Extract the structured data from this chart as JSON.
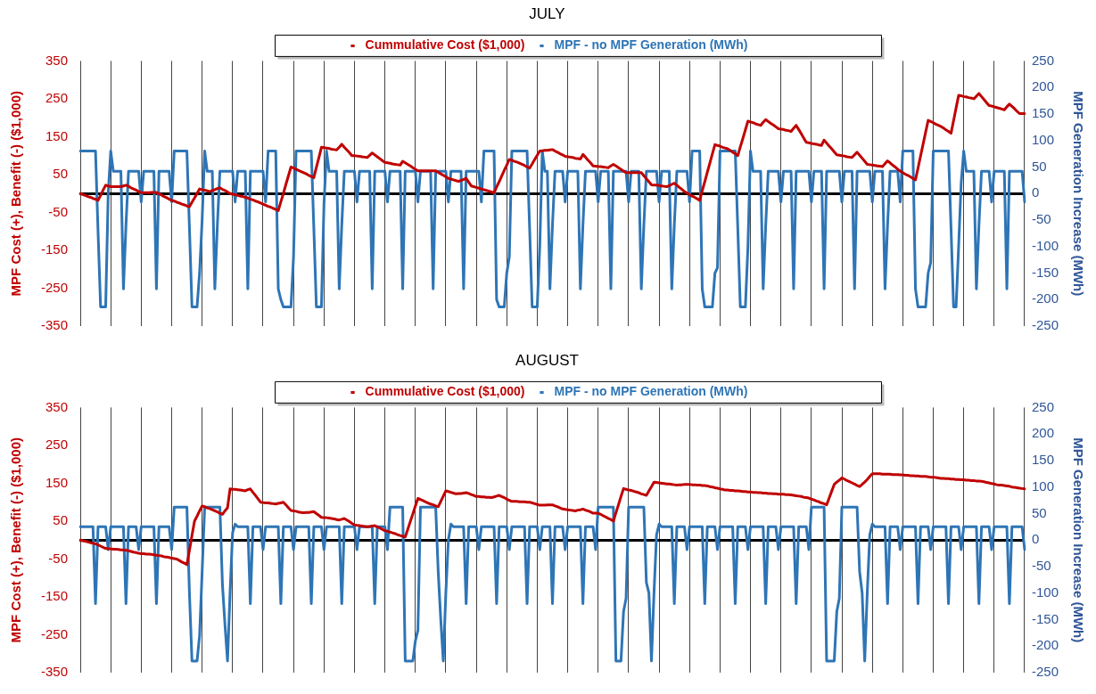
{
  "chart_data": [
    {
      "type": "line",
      "title": "JULY",
      "ylabel": "MPF Cost (+), Benefit (-) ($1,000)",
      "y2label": "MPF Generation Increase (MWh)",
      "categories": [
        null,
        null,
        null,
        null,
        null,
        null,
        null,
        null,
        null,
        null,
        null,
        null,
        null,
        null,
        null,
        null,
        null,
        null,
        null,
        null,
        null,
        null,
        null,
        null,
        null,
        null,
        null,
        null,
        null,
        null,
        null,
        null,
        null,
        null,
        null,
        null,
        null,
        null,
        null,
        null,
        null,
        null,
        null,
        null,
        null,
        null,
        null,
        null,
        null,
        null,
        null,
        null,
        null,
        null,
        null,
        null,
        null,
        null,
        null,
        null,
        null,
        null,
        null,
        null,
        null,
        null,
        null,
        null,
        null,
        null,
        null,
        null,
        null,
        null,
        null,
        null,
        null,
        null,
        null,
        null,
        null,
        null,
        null,
        null,
        null,
        null,
        null,
        null,
        null,
        null,
        null,
        null,
        null,
        null,
        null,
        null,
        null,
        null,
        null,
        null,
        null,
        null,
        null,
        null,
        null,
        null,
        null,
        null,
        null,
        null,
        null,
        null,
        null,
        null,
        null,
        null,
        null,
        null,
        null,
        null,
        null,
        null,
        null,
        null,
        null,
        null,
        null,
        null,
        null,
        null,
        null,
        null,
        null,
        null,
        null,
        null,
        null,
        null,
        null,
        null,
        null,
        null,
        null,
        null,
        null,
        null,
        null,
        null,
        null,
        null,
        null,
        null,
        null,
        null,
        null,
        null,
        null,
        null,
        null,
        null,
        null,
        null,
        null,
        null,
        null,
        null,
        null,
        null,
        null,
        null,
        null,
        null,
        null,
        null,
        null,
        null,
        null,
        null,
        null,
        null,
        null,
        null,
        null,
        null,
        null,
        null,
        null,
        null,
        null,
        null,
        null,
        null,
        null,
        null,
        null,
        null,
        null,
        null,
        null,
        null,
        null,
        null,
        null,
        null,
        null,
        null,
        null,
        null,
        null,
        null,
        null,
        null,
        null,
        null,
        null,
        null,
        null,
        null,
        null,
        null,
        null,
        null,
        null,
        null,
        null,
        null,
        null,
        null,
        null,
        null,
        null,
        null,
        null,
        null,
        null,
        null,
        null,
        null,
        null,
        null,
        null,
        null,
        null,
        null,
        null,
        null,
        null,
        null,
        null,
        null,
        null,
        null,
        null,
        null,
        null,
        null,
        null,
        null,
        null,
        null,
        null,
        null,
        null,
        null,
        null,
        null,
        null,
        null,
        null,
        null,
        null,
        null,
        null,
        null,
        null,
        null,
        null,
        null,
        null,
        null,
        null,
        null,
        null,
        null,
        null,
        null,
        null,
        null,
        null,
        null,
        null,
        null,
        null,
        null,
        null,
        null,
        null,
        null,
        null,
        null,
        null,
        null,
        null,
        null,
        null,
        null,
        null,
        null,
        null,
        null,
        null,
        null,
        null,
        null,
        null,
        null,
        null,
        null,
        null,
        null,
        null,
        null,
        null,
        null,
        null,
        null,
        null,
        null,
        null,
        null,
        null,
        null,
        null,
        null,
        null,
        null,
        null,
        null,
        null,
        null,
        null,
        null,
        null,
        null,
        null,
        null,
        null,
        null,
        null,
        null,
        null,
        null,
        null,
        null,
        null,
        null,
        null,
        null,
        null,
        null,
        null,
        null,
        null,
        null,
        null,
        null,
        null,
        null,
        null,
        null,
        null,
        null,
        null
      ],
      "ylim": [
        -350,
        350
      ],
      "yticks": [
        -350,
        -250,
        -150,
        -50,
        50,
        150,
        250,
        350
      ],
      "y2lim": [
        -250,
        250
      ],
      "y2ticks": [
        -250,
        -200,
        -150,
        -100,
        -50,
        0,
        50,
        100,
        150,
        200,
        250
      ],
      "grid": "x",
      "legend": "top",
      "tick_labels": "y",
      "marker": "none",
      "series": [
        {
          "name": "Cummulative Cost ($1,000)",
          "color": "#c00000",
          "values": [
            0,
            -3,
            -5,
            -8,
            -10,
            -13,
            -15,
            -18,
            -5,
            9,
            22,
            20,
            18,
            18,
            18,
            18,
            18,
            20,
            22,
            19,
            15,
            12,
            9,
            5,
            2,
            2,
            2,
            2,
            3,
            3,
            3,
            -1,
            -4,
            -8,
            -11,
            -15,
            -18,
            -20,
            -23,
            -25,
            -28,
            -30,
            -33,
            -35,
            -23,
            -12,
            0,
            12,
            10,
            9,
            7,
            5,
            8,
            10,
            13,
            15,
            11,
            8,
            4,
            0,
            -2,
            -3,
            -5,
            -7,
            -8,
            -10,
            -12,
            -15,
            -17,
            -20,
            -22,
            -25,
            -28,
            -31,
            -34,
            -36,
            -39,
            -42,
            -45,
            -22,
            0,
            24,
            47,
            70,
            67,
            64,
            61,
            58,
            55,
            52,
            48,
            45,
            42,
            69,
            95,
            122,
            121,
            120,
            119,
            117,
            116,
            115,
            122,
            130,
            122,
            115,
            108,
            100,
            100,
            99,
            98,
            97,
            96,
            95,
            101,
            107,
            102,
            97,
            92,
            87,
            82,
            81,
            80,
            78,
            77,
            76,
            75,
            85,
            81,
            77,
            73,
            68,
            64,
            60,
            60,
            60,
            60,
            60,
            60,
            60,
            60,
            56,
            52,
            48,
            44,
            40,
            38,
            36,
            34,
            32,
            35,
            37,
            40,
            30,
            20,
            18,
            16,
            14,
            12,
            10,
            8,
            6,
            4,
            2,
            17,
            31,
            46,
            61,
            75,
            90,
            88,
            85,
            83,
            80,
            77,
            74,
            70,
            67,
            78,
            90,
            101,
            112,
            113,
            114,
            114,
            115,
            116,
            112,
            109,
            105,
            102,
            98,
            97,
            96,
            95,
            93,
            92,
            91,
            103,
            96,
            88,
            81,
            73,
            72,
            71,
            71,
            70,
            69,
            68,
            73,
            77,
            73,
            68,
            64,
            59,
            55,
            55,
            55,
            55,
            55,
            55,
            55,
            47,
            39,
            31,
            23,
            22,
            22,
            21,
            20,
            19,
            18,
            21,
            24,
            27,
            22,
            16,
            11,
            5,
            1,
            -3,
            -7,
            -10,
            -14,
            -18,
            7,
            31,
            56,
            80,
            105,
            129,
            127,
            125,
            122,
            120,
            118,
            114,
            109,
            105,
            100,
            123,
            145,
            168,
            191,
            189,
            187,
            184,
            182,
            180,
            188,
            195,
            190,
            185,
            181,
            176,
            171,
            170,
            169,
            167,
            166,
            164,
            172,
            180,
            169,
            158,
            146,
            135,
            134,
            132,
            131,
            130,
            128,
            127,
            141,
            133,
            125,
            118,
            110,
            102,
            101,
            100,
            99,
            97,
            96,
            95,
            102,
            109,
            101,
            93,
            85,
            77,
            76,
            75,
            74,
            73,
            72,
            71,
            79,
            86,
            81,
            75,
            70,
            64,
            59,
            55,
            51,
            48,
            44,
            40,
            36,
            67,
            99,
            130,
            162,
            193,
            190,
            187,
            183,
            180,
            177,
            173,
            168,
            164,
            159,
            192,
            226,
            259,
            258,
            256,
            255,
            253,
            252,
            250,
            257,
            264,
            256,
            248,
            240,
            232,
            231,
            229,
            227,
            225,
            223,
            221,
            229,
            236,
            230,
            224,
            217,
            211,
            211,
            211
          ]
        },
        {
          "name": "MPF - no MPF Generation (MWh)",
          "color": "#2e75b6",
          "axis": "y2",
          "values": [
            80,
            80,
            80,
            80,
            80,
            80,
            80,
            -72,
            -214,
            -214,
            -214,
            0,
            80,
            42,
            42,
            42,
            42,
            -180,
            -60,
            42,
            42,
            42,
            42,
            42,
            -16,
            42,
            42,
            42,
            42,
            42,
            -180,
            42,
            42,
            42,
            42,
            42,
            -16,
            80,
            80,
            80,
            80,
            80,
            80,
            -65,
            -214,
            -214,
            -214,
            -150,
            -50,
            80,
            42,
            42,
            42,
            -180,
            -60,
            42,
            42,
            42,
            42,
            42,
            42,
            -16,
            42,
            42,
            42,
            42,
            -180,
            42,
            42,
            42,
            42,
            42,
            42,
            -16,
            80,
            80,
            80,
            80,
            -180,
            -200,
            -214,
            -214,
            -214,
            -214,
            -120,
            80,
            80,
            80,
            80,
            80,
            80,
            80,
            -65,
            -214,
            -214,
            -214,
            -20,
            80,
            42,
            42,
            42,
            42,
            -180,
            -60,
            42,
            42,
            42,
            42,
            42,
            -16,
            42,
            42,
            42,
            42,
            42,
            -180,
            42,
            42,
            42,
            42,
            42,
            -16,
            42,
            42,
            42,
            42,
            42,
            -180,
            42,
            42,
            42,
            42,
            42,
            -16,
            42,
            42,
            42,
            42,
            42,
            -180,
            42,
            42,
            42,
            42,
            42,
            -16,
            42,
            42,
            42,
            42,
            42,
            -180,
            42,
            42,
            42,
            42,
            42,
            42,
            -16,
            80,
            80,
            80,
            80,
            80,
            -200,
            -214,
            -214,
            -214,
            -150,
            -120,
            80,
            80,
            80,
            80,
            80,
            80,
            80,
            -65,
            -214,
            -214,
            -214,
            -100,
            80,
            42,
            42,
            -180,
            -60,
            42,
            42,
            42,
            42,
            -16,
            42,
            42,
            42,
            42,
            42,
            -180,
            -60,
            42,
            42,
            42,
            42,
            42,
            -16,
            42,
            42,
            42,
            42,
            -180,
            42,
            42,
            42,
            42,
            42,
            42,
            -16,
            42,
            42,
            42,
            42,
            -180,
            -60,
            42,
            42,
            42,
            42,
            42,
            -16,
            42,
            42,
            42,
            42,
            -180,
            -60,
            42,
            42,
            42,
            42,
            42,
            -16,
            80,
            80,
            80,
            80,
            -180,
            -214,
            -214,
            -214,
            -214,
            -150,
            -140,
            80,
            80,
            80,
            80,
            80,
            80,
            80,
            -65,
            -214,
            -214,
            -214,
            -100,
            80,
            42,
            42,
            42,
            42,
            -180,
            -60,
            42,
            42,
            42,
            42,
            42,
            -16,
            42,
            42,
            42,
            42,
            -180,
            42,
            42,
            42,
            42,
            42,
            42,
            -16,
            42,
            42,
            42,
            42,
            -180,
            42,
            42,
            42,
            42,
            42,
            42,
            -16,
            42,
            42,
            42,
            42,
            -180,
            42,
            42,
            42,
            42,
            42,
            42,
            -16,
            42,
            42,
            42,
            42,
            -180,
            -60,
            42,
            42,
            42,
            42,
            -16,
            80,
            80,
            80,
            80,
            80,
            -180,
            -214,
            -214,
            -214,
            -214,
            -150,
            -130,
            80,
            80,
            80,
            80,
            80,
            80,
            80,
            -65,
            -214,
            -214,
            -100,
            20,
            80,
            42,
            42,
            42,
            42,
            -180,
            -60,
            42,
            42,
            42,
            42,
            -16,
            42,
            42,
            42,
            42,
            42,
            -180,
            42,
            42,
            42,
            42,
            42,
            42,
            -16
          ]
        }
      ]
    },
    {
      "type": "line",
      "title": "AUGUST",
      "ylabel": "MPF Cost (+), Benefit (-) ($1,000)",
      "y2label": "MPF Generation Increase (MWh)",
      "categories": [
        null,
        null,
        null,
        null,
        null,
        null,
        null,
        null,
        null,
        null,
        null,
        null,
        null,
        null,
        null,
        null,
        null,
        null,
        null,
        null,
        null,
        null,
        null,
        null,
        null,
        null,
        null,
        null,
        null,
        null,
        null,
        null,
        null,
        null,
        null,
        null,
        null,
        null,
        null,
        null,
        null,
        null,
        null,
        null,
        null,
        null,
        null,
        null,
        null,
        null,
        null,
        null,
        null,
        null,
        null,
        null,
        null,
        null,
        null,
        null,
        null,
        null,
        null,
        null,
        null,
        null,
        null,
        null,
        null,
        null,
        null,
        null,
        null,
        null,
        null,
        null,
        null,
        null,
        null,
        null,
        null,
        null,
        null,
        null,
        null,
        null,
        null,
        null,
        null,
        null,
        null,
        null,
        null,
        null,
        null,
        null,
        null,
        null,
        null,
        null,
        null,
        null,
        null,
        null,
        null,
        null,
        null,
        null,
        null,
        null,
        null,
        null,
        null,
        null,
        null,
        null,
        null,
        null,
        null,
        null,
        null,
        null,
        null,
        null,
        null,
        null,
        null,
        null,
        null,
        null,
        null,
        null,
        null,
        null,
        null,
        null,
        null,
        null,
        null,
        null,
        null,
        null,
        null,
        null,
        null,
        null,
        null,
        null,
        null,
        null,
        null,
        null,
        null,
        null,
        null,
        null,
        null,
        null,
        null,
        null,
        null,
        null,
        null,
        null,
        null,
        null,
        null,
        null,
        null,
        null,
        null,
        null,
        null,
        null,
        null,
        null,
        null,
        null,
        null,
        null,
        null,
        null,
        null,
        null,
        null,
        null,
        null,
        null,
        null,
        null,
        null,
        null,
        null,
        null,
        null,
        null,
        null,
        null,
        null,
        null,
        null,
        null,
        null,
        null,
        null,
        null,
        null,
        null,
        null,
        null,
        null,
        null,
        null,
        null,
        null,
        null,
        null,
        null,
        null,
        null,
        null,
        null,
        null,
        null,
        null,
        null,
        null,
        null,
        null,
        null,
        null,
        null,
        null,
        null,
        null,
        null,
        null,
        null,
        null,
        null,
        null,
        null,
        null,
        null,
        null,
        null,
        null,
        null,
        null,
        null,
        null,
        null,
        null,
        null,
        null,
        null,
        null,
        null,
        null,
        null,
        null,
        null,
        null,
        null,
        null,
        null,
        null,
        null,
        null,
        null,
        null,
        null,
        null,
        null,
        null,
        null,
        null,
        null,
        null,
        null,
        null,
        null,
        null,
        null,
        null,
        null,
        null,
        null,
        null,
        null,
        null,
        null,
        null,
        null,
        null,
        null,
        null,
        null,
        null,
        null,
        null,
        null,
        null,
        null,
        null,
        null,
        null,
        null,
        null,
        null,
        null,
        null,
        null,
        null,
        null,
        null,
        null,
        null,
        null,
        null,
        null,
        null,
        null,
        null,
        null,
        null,
        null,
        null,
        null,
        null,
        null,
        null,
        null,
        null,
        null,
        null,
        null,
        null,
        null,
        null,
        null,
        null,
        null,
        null,
        null,
        null,
        null,
        null,
        null,
        null,
        null,
        null,
        null,
        null,
        null,
        null,
        null,
        null,
        null,
        null,
        null,
        null,
        null,
        null,
        null,
        null,
        null,
        null,
        null,
        null,
        null,
        null,
        null
      ],
      "ylim": [
        -350,
        350
      ],
      "yticks": [
        -350,
        -250,
        -150,
        -50,
        50,
        150,
        250,
        350
      ],
      "y2lim": [
        -250,
        250
      ],
      "y2ticks": [
        -250,
        -200,
        -150,
        -100,
        -50,
        0,
        50,
        100,
        150,
        200,
        250
      ],
      "grid": "x",
      "legend": "top",
      "tick_labels": "y",
      "marker": "none",
      "series": [
        {
          "name": "Cummulative Cost ($1,000)",
          "color": "#c00000",
          "values": [
            0,
            -2,
            -3,
            -5,
            -7,
            -8,
            -10,
            -13,
            -16,
            -19,
            -22,
            -23,
            -23,
            -24,
            -24,
            -25,
            -26,
            -26,
            -27,
            -28,
            -30,
            -32,
            -33,
            -35,
            -36,
            -36,
            -37,
            -37,
            -38,
            -39,
            -40,
            -41,
            -42,
            -44,
            -45,
            -46,
            -48,
            -49,
            -50,
            -54,
            -58,
            -61,
            -65,
            -27,
            12,
            50,
            63,
            77,
            90,
            88,
            85,
            83,
            80,
            77,
            74,
            71,
            68,
            77,
            85,
            135,
            134,
            134,
            133,
            132,
            131,
            130,
            133,
            135,
            126,
            118,
            109,
            100,
            99,
            98,
            98,
            97,
            96,
            95,
            97,
            98,
            100,
            93,
            85,
            78,
            77,
            76,
            74,
            73,
            72,
            73,
            73,
            74,
            75,
            70,
            65,
            60,
            59,
            59,
            58,
            57,
            56,
            54,
            53,
            55,
            57,
            53,
            49,
            44,
            40,
            39,
            38,
            37,
            36,
            35,
            36,
            37,
            38,
            35,
            32,
            28,
            25,
            23,
            21,
            19,
            17,
            14,
            12,
            10,
            8,
            28,
            49,
            69,
            90,
            110,
            107,
            104,
            101,
            98,
            95,
            93,
            90,
            88,
            102,
            116,
            130,
            128,
            126,
            124,
            122,
            123,
            123,
            124,
            125,
            123,
            120,
            118,
            115,
            115,
            114,
            114,
            113,
            113,
            112,
            114,
            116,
            118,
            115,
            112,
            108,
            105,
            102,
            102,
            102,
            101,
            101,
            101,
            100,
            100,
            98,
            96,
            94,
            92,
            92,
            92,
            93,
            93,
            93,
            90,
            88,
            85,
            82,
            81,
            80,
            79,
            78,
            77,
            79,
            80,
            82,
            79,
            77,
            74,
            71,
            71,
            71,
            68,
            64,
            61,
            57,
            54,
            50,
            72,
            93,
            115,
            136,
            134,
            132,
            131,
            129,
            127,
            125,
            122,
            120,
            118,
            130,
            141,
            153,
            152,
            151,
            150,
            149,
            148,
            148,
            147,
            146,
            145,
            146,
            146,
            147,
            147,
            147,
            146,
            146,
            145,
            145,
            144,
            144,
            143,
            141,
            140,
            138,
            137,
            135,
            134,
            132,
            132,
            131,
            131,
            130,
            130,
            129,
            128,
            128,
            127,
            127,
            126,
            126,
            125,
            125,
            124,
            124,
            123,
            123,
            122,
            122,
            121,
            121,
            121,
            120,
            120,
            119,
            118,
            117,
            116,
            115,
            113,
            112,
            111,
            108,
            106,
            103,
            101,
            98,
            96,
            93,
            111,
            129,
            147,
            153,
            158,
            164,
            161,
            157,
            154,
            151,
            148,
            144,
            141,
            147,
            153,
            160,
            168,
            175,
            175,
            175,
            175,
            174,
            174,
            174,
            174,
            173,
            173,
            173,
            172,
            172,
            171,
            171,
            170,
            170,
            169,
            169,
            168,
            168,
            168,
            167,
            166,
            166,
            165,
            164,
            163,
            163,
            162,
            162,
            161,
            161,
            160,
            160,
            159,
            159,
            158,
            158,
            157,
            157,
            156,
            156,
            155,
            154,
            152,
            151,
            149,
            148,
            146,
            145,
            145,
            144,
            143,
            142,
            140,
            139,
            138,
            137,
            136,
            135
          ]
        },
        {
          "name": "MPF - no MPF Generation (MWh)",
          "color": "#2e75b6",
          "axis": "y2",
          "values": [
            25,
            25,
            25,
            25,
            25,
            25,
            -120,
            25,
            25,
            25,
            25,
            -18,
            25,
            25,
            25,
            25,
            25,
            25,
            -120,
            25,
            25,
            25,
            25,
            -18,
            25,
            25,
            25,
            25,
            25,
            25,
            -120,
            25,
            25,
            25,
            25,
            25,
            -18,
            62,
            62,
            62,
            62,
            62,
            62,
            -100,
            -228,
            -228,
            -228,
            -180,
            -60,
            62,
            62,
            62,
            62,
            62,
            62,
            62,
            -84,
            -160,
            -228,
            -100,
            14,
            30,
            25,
            25,
            25,
            25,
            25,
            -120,
            25,
            25,
            25,
            25,
            -18,
            25,
            25,
            25,
            25,
            25,
            25,
            -120,
            25,
            25,
            25,
            25,
            -18,
            25,
            25,
            25,
            25,
            25,
            25,
            -120,
            25,
            25,
            25,
            25,
            -18,
            25,
            25,
            25,
            25,
            25,
            25,
            -120,
            25,
            25,
            25,
            25,
            25,
            -18,
            25,
            25,
            25,
            25,
            25,
            25,
            -120,
            25,
            25,
            25,
            25,
            -18,
            62,
            62,
            62,
            62,
            62,
            62,
            -228,
            -228,
            -228,
            -228,
            -190,
            -170,
            62,
            62,
            62,
            62,
            62,
            62,
            62,
            -60,
            -150,
            -228,
            -100,
            0,
            30,
            25,
            25,
            25,
            25,
            25,
            -120,
            25,
            25,
            25,
            25,
            -18,
            25,
            25,
            25,
            25,
            25,
            25,
            -120,
            25,
            25,
            25,
            25,
            -18,
            25,
            25,
            25,
            25,
            25,
            25,
            -120,
            25,
            25,
            25,
            25,
            -18,
            25,
            25,
            25,
            25,
            -120,
            25,
            25,
            25,
            25,
            -18,
            25,
            25,
            25,
            25,
            25,
            25,
            -120,
            25,
            25,
            25,
            25,
            -18,
            62,
            62,
            62,
            62,
            62,
            62,
            62,
            -228,
            -228,
            -228,
            -135,
            -110,
            62,
            62,
            62,
            62,
            62,
            62,
            62,
            -80,
            -100,
            -228,
            -100,
            10,
            30,
            25,
            25,
            25,
            25,
            25,
            -120,
            25,
            25,
            25,
            25,
            -18,
            25,
            25,
            25,
            25,
            25,
            25,
            -120,
            25,
            25,
            25,
            25,
            -18,
            25,
            25,
            25,
            25,
            25,
            25,
            -120,
            25,
            25,
            25,
            25,
            -18,
            25,
            25,
            25,
            25,
            25,
            25,
            -120,
            25,
            25,
            25,
            25,
            -18,
            25,
            25,
            25,
            25,
            25,
            25,
            -120,
            25,
            25,
            25,
            25,
            -18,
            62,
            62,
            62,
            62,
            62,
            62,
            -228,
            -228,
            -228,
            -228,
            -135,
            -110,
            62,
            62,
            62,
            62,
            62,
            62,
            62,
            -60,
            -100,
            -228,
            -100,
            10,
            30,
            25,
            25,
            25,
            25,
            25,
            -120,
            25,
            25,
            25,
            25,
            -18,
            25,
            25,
            25,
            25,
            25,
            25,
            -120,
            25,
            25,
            25,
            25,
            -18,
            25,
            25,
            25,
            25,
            25,
            25,
            -120,
            25,
            25,
            25,
            25,
            -18,
            25,
            25,
            25,
            25,
            25,
            25,
            -120,
            25,
            25,
            25,
            25,
            -18,
            25,
            25,
            25,
            25,
            25,
            25,
            -120,
            25,
            25,
            25,
            25,
            25,
            -18
          ]
        }
      ]
    }
  ]
}
